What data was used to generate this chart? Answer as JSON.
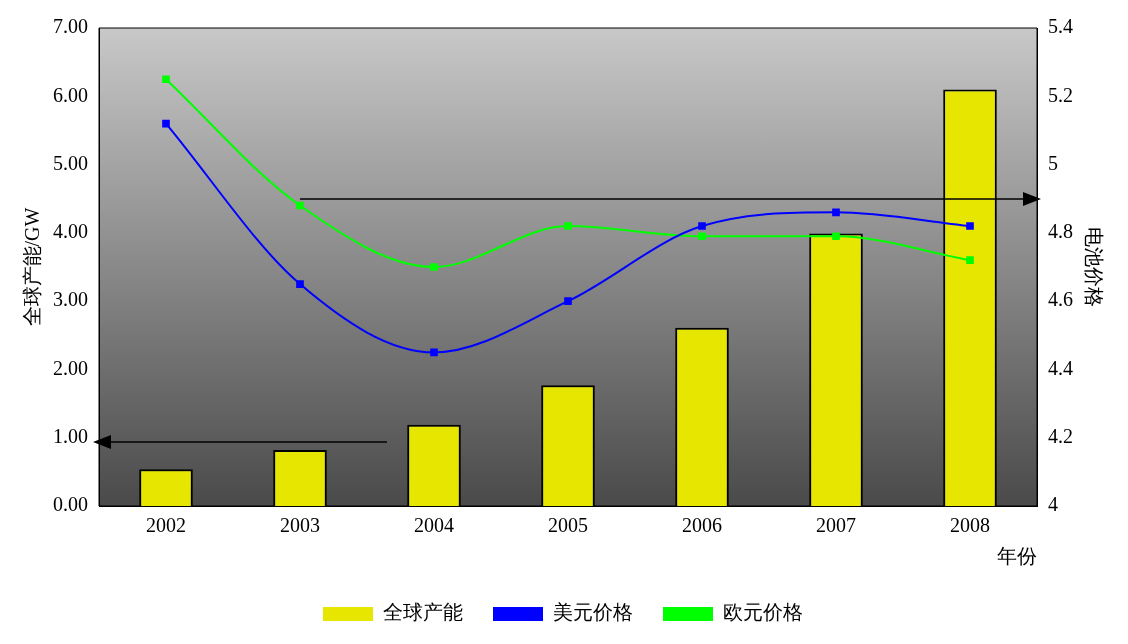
{
  "chart_data": {
    "type": "bar",
    "xlabel": "年份",
    "ylabel": "全球产能/GW",
    "y2label": "电池价格",
    "categories": [
      "2002",
      "2003",
      "2004",
      "2005",
      "2006",
      "2007",
      "2008"
    ],
    "series": [
      {
        "name": "全球产能",
        "color": "#e6e600",
        "values": [
          0.54,
          0.82,
          1.19,
          1.77,
          2.61,
          3.99,
          6.1
        ]
      },
      {
        "name": "美元价格",
        "type": "line",
        "axis": "y2",
        "color": "#0000ff",
        "values": [
          5.12,
          4.65,
          4.45,
          4.6,
          4.82,
          4.86,
          4.82
        ]
      },
      {
        "name": "欧元价格",
        "type": "line",
        "axis": "y2",
        "color": "#00ff00",
        "values": [
          5.25,
          4.88,
          4.7,
          4.82,
          4.79,
          4.79,
          4.72
        ]
      }
    ],
    "ylim": [
      0,
      7
    ],
    "yticks": [
      {
        "value": 0,
        "label": "0.00"
      },
      {
        "value": 1,
        "label": "1.00"
      },
      {
        "value": 2,
        "label": "2.00"
      },
      {
        "value": 3,
        "label": "3.00"
      },
      {
        "value": 4,
        "label": "4.00"
      },
      {
        "value": 5,
        "label": "5.00"
      },
      {
        "value": 6,
        "label": "6.00"
      },
      {
        "value": 7,
        "label": "7.00"
      }
    ],
    "y2lim": [
      4,
      5.4
    ],
    "y2ticks": [
      4,
      4.2,
      4.4,
      4.6,
      4.8,
      5,
      5.2,
      5.4
    ],
    "marker": "square",
    "legend": "bottom",
    "grid": false
  }
}
